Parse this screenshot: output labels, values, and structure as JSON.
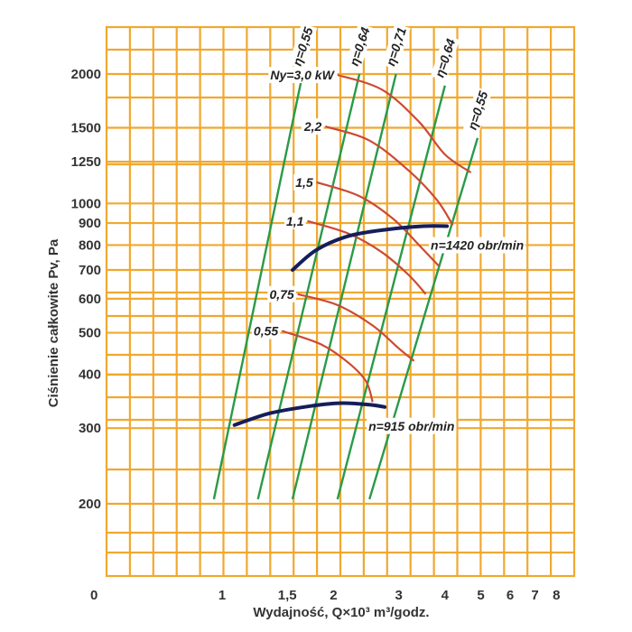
{
  "chart_data": {
    "type": "line",
    "xlabel": "Wydajność, Q×10³ m³/godz.",
    "ylabel": "Ciśnienie całkowite Pv, Pa",
    "x_scale": "log",
    "y_scale": "log",
    "x_ticks": [
      "1",
      "1,5",
      "2",
      "3",
      "4",
      "5",
      "6",
      "7",
      "8"
    ],
    "y_ticks": [
      "200",
      "300",
      "400",
      "500",
      "600",
      "700",
      "800",
      "900",
      "1000",
      "1250",
      "1500",
      "2000"
    ],
    "origin_label": "0",
    "grid": true,
    "efficiency_lines": [
      {
        "name": "η=0,55",
        "points": [
          [
            0.95,
            205
          ],
          [
            1.65,
            2000
          ]
        ]
      },
      {
        "name": "η=0,64",
        "points": [
          [
            1.25,
            205
          ],
          [
            2.35,
            2000
          ]
        ]
      },
      {
        "name": "η=0,71",
        "points": [
          [
            1.55,
            205
          ],
          [
            2.95,
            2000
          ]
        ]
      },
      {
        "name": "η=0,64",
        "points": [
          [
            2.05,
            205
          ],
          [
            4.0,
            1880
          ]
        ]
      },
      {
        "name": "η=0,55",
        "points": [
          [
            2.5,
            205
          ],
          [
            4.9,
            1420
          ]
        ]
      }
    ],
    "power_curves": [
      {
        "name": "Ny=3,0 kW",
        "points": [
          [
            2.05,
            1990
          ],
          [
            2.7,
            1840
          ],
          [
            3.4,
            1550
          ],
          [
            4.0,
            1300
          ],
          [
            4.7,
            1180
          ]
        ]
      },
      {
        "name": "2,2",
        "points": [
          [
            1.9,
            1510
          ],
          [
            2.5,
            1400
          ],
          [
            3.2,
            1190
          ],
          [
            3.8,
            1020
          ],
          [
            4.2,
            890
          ]
        ]
      },
      {
        "name": "1,5",
        "points": [
          [
            1.8,
            1120
          ],
          [
            2.35,
            1040
          ],
          [
            2.9,
            920
          ],
          [
            3.45,
            790
          ],
          [
            3.85,
            715
          ]
        ]
      },
      {
        "name": "1,1",
        "points": [
          [
            1.7,
            910
          ],
          [
            2.2,
            850
          ],
          [
            2.7,
            770
          ],
          [
            3.2,
            680
          ],
          [
            3.55,
            615
          ]
        ]
      },
      {
        "name": "0,75",
        "points": [
          [
            1.6,
            615
          ],
          [
            2.05,
            580
          ],
          [
            2.55,
            520
          ],
          [
            3.0,
            460
          ],
          [
            3.3,
            430
          ]
        ]
      },
      {
        "name": "0,55",
        "points": [
          [
            1.45,
            505
          ],
          [
            1.85,
            470
          ],
          [
            2.2,
            425
          ],
          [
            2.45,
            385
          ],
          [
            2.55,
            345
          ]
        ]
      }
    ],
    "speed_curves": [
      {
        "name": "n=1420 obr/min",
        "points": [
          [
            1.55,
            700
          ],
          [
            1.8,
            780
          ],
          [
            2.2,
            840
          ],
          [
            2.8,
            870
          ],
          [
            3.5,
            885
          ],
          [
            4.05,
            885
          ]
        ]
      },
      {
        "name": "n=915 obr/min",
        "points": [
          [
            1.08,
            305
          ],
          [
            1.35,
            325
          ],
          [
            1.75,
            338
          ],
          [
            2.1,
            343
          ],
          [
            2.5,
            340
          ],
          [
            2.75,
            336
          ]
        ]
      }
    ]
  }
}
